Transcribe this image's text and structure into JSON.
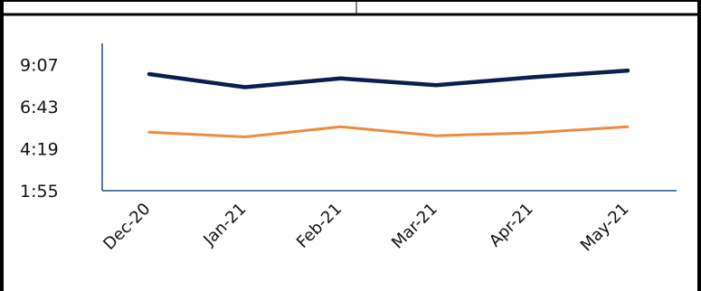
{
  "chart_data": {
    "type": "line",
    "categories": [
      "Dec-20",
      "Jan-21",
      "Feb-21",
      "Mar-21",
      "Apr-21",
      "May-21"
    ],
    "y_tick_labels": [
      "9:07",
      "6:43",
      "4:19",
      "1:55"
    ],
    "y_ticks_minutes": [
      547,
      403,
      259,
      115
    ],
    "ylim_minutes": [
      115,
      619
    ],
    "series": [
      {
        "values_minutes": [
          514,
          469,
          499,
          476,
          503,
          526
        ],
        "color": "#0b1f4f"
      },
      {
        "values_minutes": [
          315,
          299,
          334,
          303,
          313,
          334
        ],
        "color": "#f08a3c"
      }
    ],
    "grid": false,
    "legend": "none"
  },
  "colors": {
    "axis": "#1f4e8c",
    "frame": "#000000"
  }
}
